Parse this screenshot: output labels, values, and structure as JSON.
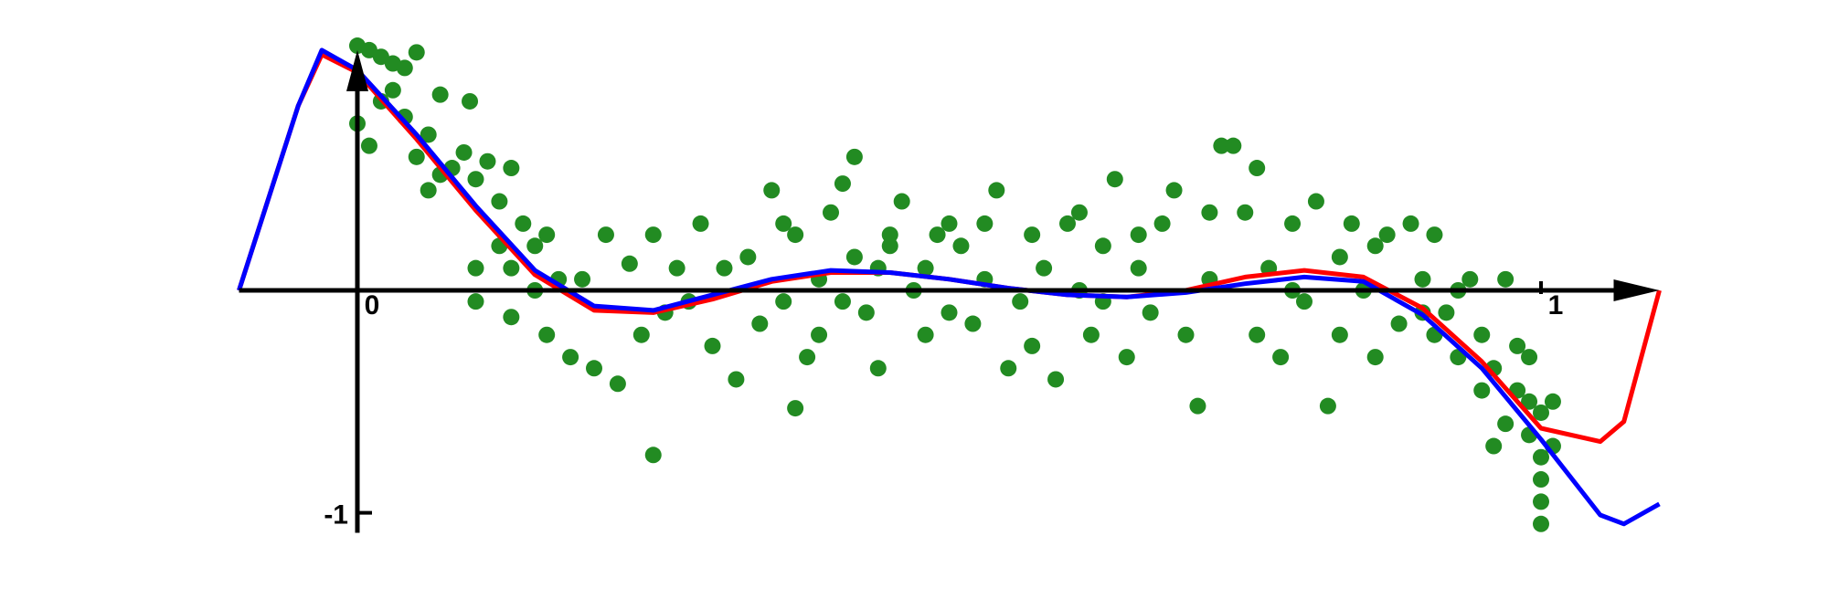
{
  "chart_data": {
    "type": "scatter",
    "color": "#228b22",
    "xlim": [
      -0.1,
      1.1
    ],
    "ylim": [
      -1.09,
      1.08
    ],
    "xticks": [
      0,
      1
    ],
    "yticks": [
      -1
    ],
    "x": [
      0.0,
      0.01,
      0.02,
      0.03,
      0.04,
      0.05,
      0.0,
      0.01,
      0.02,
      0.03,
      0.04,
      0.05,
      0.06,
      0.07,
      0.08,
      0.09,
      0.1,
      0.06,
      0.07,
      0.095,
      0.11,
      0.12,
      0.13,
      0.14,
      0.15,
      0.12,
      0.1,
      0.13,
      0.16,
      0.17,
      0.1,
      0.13,
      0.16,
      0.18,
      0.2,
      0.22,
      0.15,
      0.19,
      0.21,
      0.23,
      0.25,
      0.24,
      0.26,
      0.28,
      0.27,
      0.29,
      0.3,
      0.31,
      0.25,
      0.32,
      0.33,
      0.34,
      0.35,
      0.36,
      0.37,
      0.38,
      0.39,
      0.4,
      0.41,
      0.42,
      0.43,
      0.44,
      0.45,
      0.46,
      0.47,
      0.48,
      0.49,
      0.5,
      0.37,
      0.42,
      0.45,
      0.41,
      0.36,
      0.39,
      0.44,
      0.48,
      0.5,
      0.51,
      0.52,
      0.53,
      0.54,
      0.55,
      0.56,
      0.57,
      0.58,
      0.59,
      0.6,
      0.61,
      0.62,
      0.63,
      0.64,
      0.65,
      0.66,
      0.67,
      0.68,
      0.69,
      0.7,
      0.71,
      0.72,
      0.53,
      0.57,
      0.61,
      0.63,
      0.66,
      0.72,
      0.73,
      0.74,
      0.75,
      0.76,
      0.77,
      0.78,
      0.79,
      0.8,
      0.81,
      0.82,
      0.83,
      0.84,
      0.85,
      0.86,
      0.87,
      0.88,
      0.89,
      0.9,
      0.91,
      0.76,
      0.79,
      0.83,
      0.86,
      0.9,
      0.91,
      0.92,
      0.93,
      0.94,
      0.95,
      0.96,
      0.97,
      0.97,
      0.98,
      0.98,
      0.99,
      0.99,
      1.0,
      1.0,
      1.0,
      1.01,
      1.01,
      1.0,
      1.0,
      0.96,
      0.95,
      0.93,
      0.99
    ],
    "values": [
      1.1,
      1.08,
      1.05,
      1.02,
      1.0,
      1.07,
      0.75,
      0.65,
      0.85,
      0.9,
      0.78,
      0.6,
      0.7,
      0.88,
      0.55,
      0.62,
      0.5,
      0.45,
      0.52,
      0.85,
      0.58,
      0.4,
      0.55,
      0.3,
      0.2,
      0.2,
      0.1,
      0.1,
      0.25,
      0.05,
      -0.05,
      -0.12,
      -0.2,
      -0.3,
      -0.35,
      -0.42,
      0.0,
      0.05,
      0.25,
      0.12,
      0.25,
      -0.2,
      -0.1,
      -0.05,
      0.1,
      0.3,
      -0.25,
      0.1,
      -0.74,
      -0.4,
      0.15,
      -0.15,
      0.45,
      -0.05,
      0.25,
      -0.3,
      0.05,
      0.35,
      0.48,
      0.15,
      -0.1,
      -0.35,
      0.2,
      0.4,
      0.0,
      -0.2,
      0.25,
      -0.1,
      -0.53,
      0.6,
      0.25,
      -0.05,
      0.3,
      -0.2,
      0.1,
      0.1,
      0.3,
      0.2,
      -0.15,
      0.05,
      0.45,
      -0.35,
      -0.05,
      0.25,
      0.1,
      -0.4,
      0.3,
      0.0,
      -0.2,
      0.2,
      0.5,
      -0.3,
      0.1,
      -0.1,
      0.3,
      0.45,
      -0.2,
      -0.52,
      0.35,
      0.3,
      -0.25,
      0.35,
      -0.05,
      0.25,
      0.05,
      0.65,
      0.65,
      0.35,
      0.55,
      0.1,
      -0.3,
      0.3,
      -0.05,
      0.4,
      -0.52,
      0.15,
      0.3,
      0.0,
      0.2,
      0.25,
      -0.15,
      0.3,
      0.05,
      0.25,
      -0.2,
      0.0,
      -0.2,
      -0.3,
      -0.1,
      -0.2,
      -0.1,
      -0.3,
      0.05,
      -0.45,
      -0.35,
      -0.6,
      0.05,
      -0.25,
      -0.45,
      -0.65,
      -0.5,
      -0.75,
      -0.85,
      -0.95,
      -0.5,
      -0.7,
      -1.05,
      -0.55,
      -0.7,
      -0.2,
      0.0,
      -0.3
    ],
    "lines": [
      {
        "color": "#ff0000",
        "x": [
          -0.1,
          -0.05,
          -0.03,
          0,
          0.05,
          0.1,
          0.15,
          0.2,
          0.25,
          0.3,
          0.35,
          0.4,
          0.45,
          0.5,
          0.55,
          0.6,
          0.65,
          0.7,
          0.75,
          0.8,
          0.85,
          0.9,
          0.95,
          1.0,
          1.05,
          1.07,
          1.1
        ],
        "values": [
          0,
          0.83,
          1.06,
          0.98,
          0.68,
          0.36,
          0.07,
          -0.09,
          -0.1,
          -0.04,
          0.04,
          0.08,
          0.08,
          0.05,
          0.01,
          -0.02,
          -0.03,
          0.0,
          0.06,
          0.09,
          0.06,
          -0.08,
          -0.32,
          -0.62,
          -0.68,
          -0.59,
          0
        ]
      },
      {
        "color": "#0000ff",
        "x": [
          -0.1,
          -0.05,
          -0.03,
          0,
          0.05,
          0.1,
          0.15,
          0.2,
          0.25,
          0.3,
          0.35,
          0.4,
          0.45,
          0.5,
          0.55,
          0.6,
          0.65,
          0.7,
          0.75,
          0.8,
          0.85,
          0.9,
          0.95,
          1.0,
          1.05,
          1.07,
          1.1
        ],
        "values": [
          0,
          0.83,
          1.08,
          0.99,
          0.7,
          0.38,
          0.09,
          -0.07,
          -0.09,
          -0.02,
          0.05,
          0.09,
          0.08,
          0.05,
          0.01,
          -0.02,
          -0.03,
          -0.01,
          0.03,
          0.06,
          0.04,
          -0.11,
          -0.35,
          -0.67,
          -1.01,
          -1.05,
          -0.96
        ]
      }
    ]
  }
}
